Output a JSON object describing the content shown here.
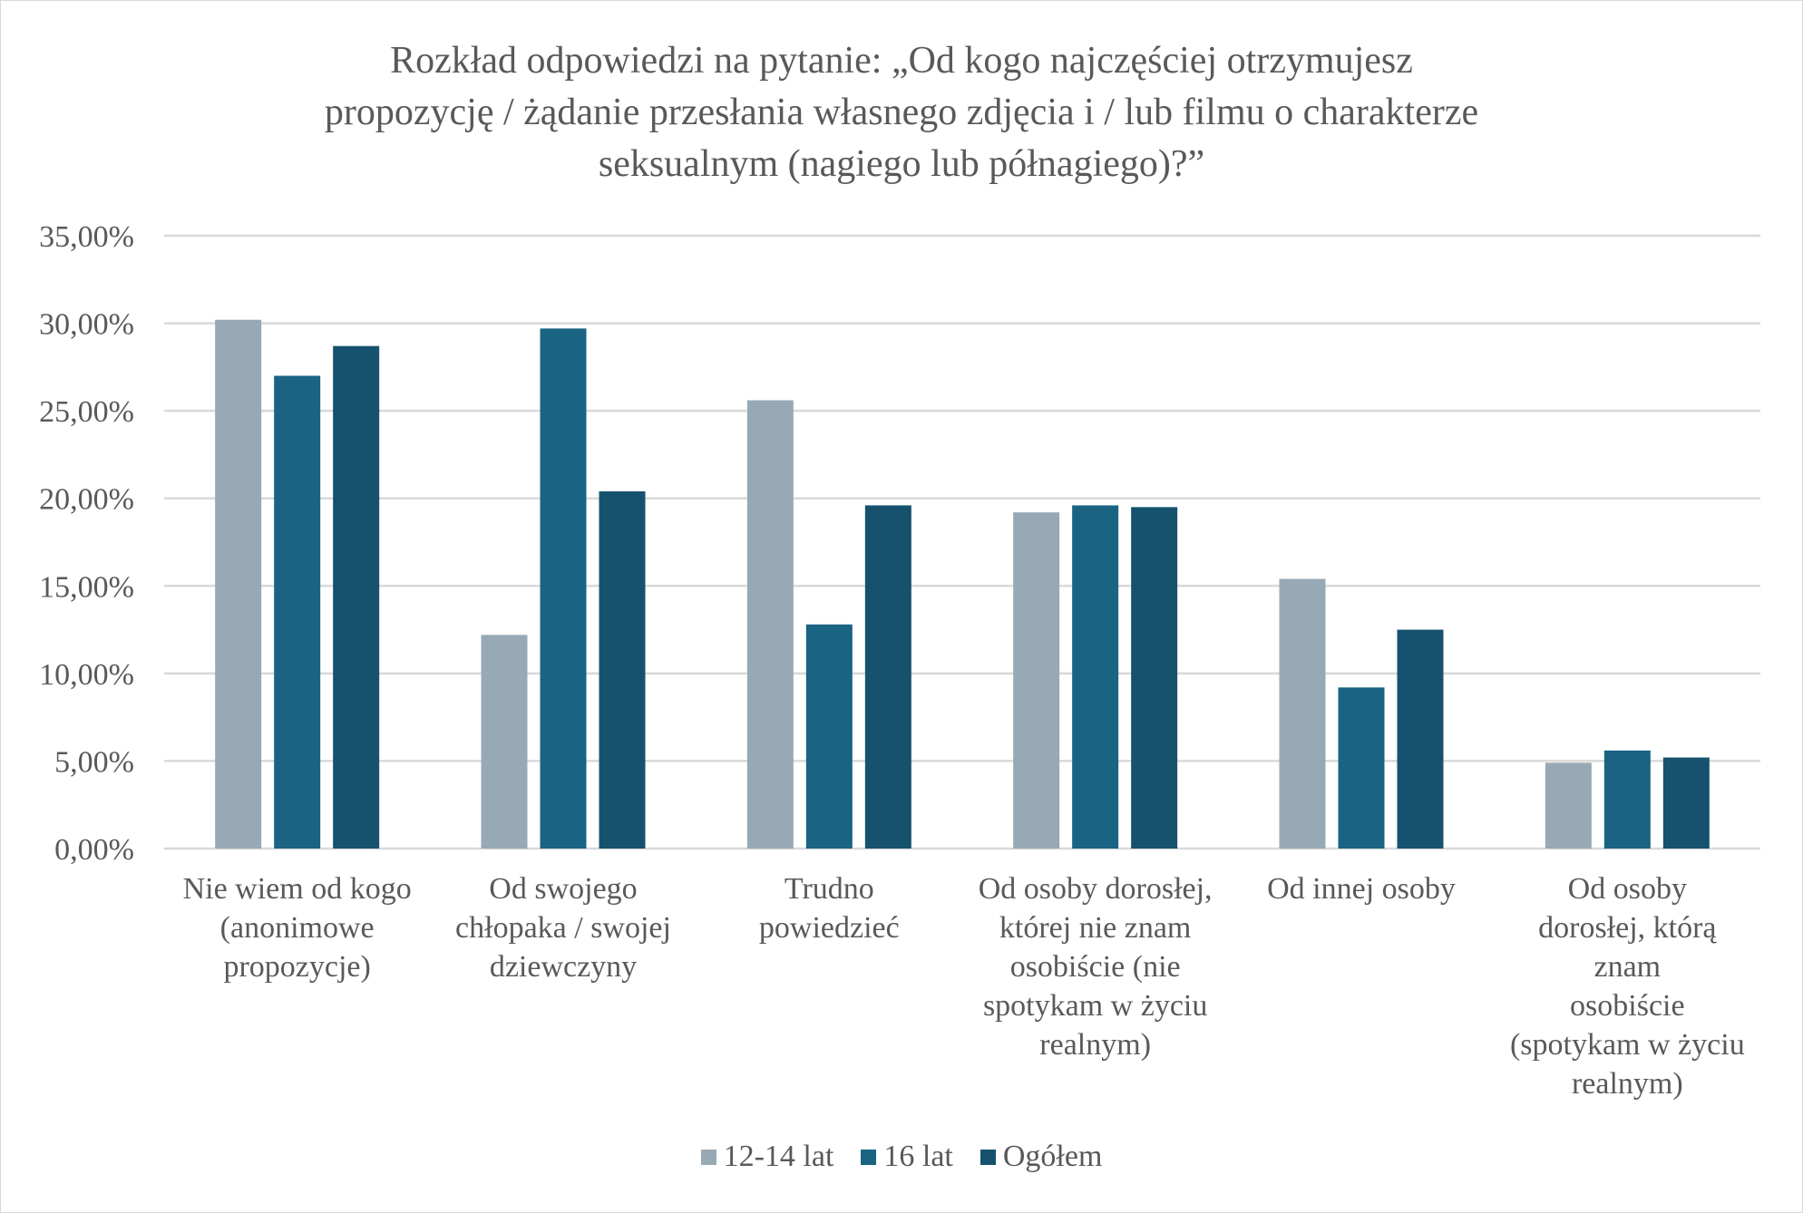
{
  "chart_data": {
    "type": "bar",
    "title_lines": [
      "Rozkład odpowiedzi na pytanie: „Od kogo najczęściej otrzymujesz",
      "propozycję / żądanie przesłania własnego zdjęcia i / lub filmu o charakterze",
      "seksualnym (nagiego lub półnagiego)?”"
    ],
    "categories": [
      [
        "Nie wiem od kogo",
        "(anonimowe",
        "propozycje)"
      ],
      [
        "Od swojego",
        "chłopaka / swojej",
        "dziewczyny"
      ],
      [
        "Trudno",
        "powiedzieć"
      ],
      [
        "Od osoby dorosłej,",
        "której nie znam",
        "osobiście (nie",
        "spotykam w życiu",
        "realnym)"
      ],
      [
        "Od innej osoby"
      ],
      [
        "Od osoby",
        "dorosłej, którą",
        "znam",
        "osobiście",
        "(spotykam w życiu",
        "realnym)"
      ]
    ],
    "series": [
      {
        "name": "12-14 lat",
        "color": "#97a9b5",
        "values": [
          30.2,
          12.2,
          25.6,
          19.2,
          15.4,
          4.9
        ]
      },
      {
        "name": "16 lat",
        "color": "#1a6383",
        "values": [
          27.0,
          29.7,
          12.8,
          19.6,
          9.2,
          5.6
        ]
      },
      {
        "name": "Ogółem",
        "color": "#16526e",
        "values": [
          28.7,
          20.4,
          19.6,
          19.5,
          12.5,
          5.2
        ]
      }
    ],
    "yticks": [
      "0,00%",
      "5,00%",
      "10,00%",
      "15,00%",
      "20,00%",
      "25,00%",
      "30,00%",
      "35,00%"
    ],
    "ylim": [
      0,
      35
    ],
    "ylabel": "",
    "xlabel": "",
    "grid": true,
    "gridline_color": "#d9d9d9",
    "legend_position": "bottom"
  }
}
